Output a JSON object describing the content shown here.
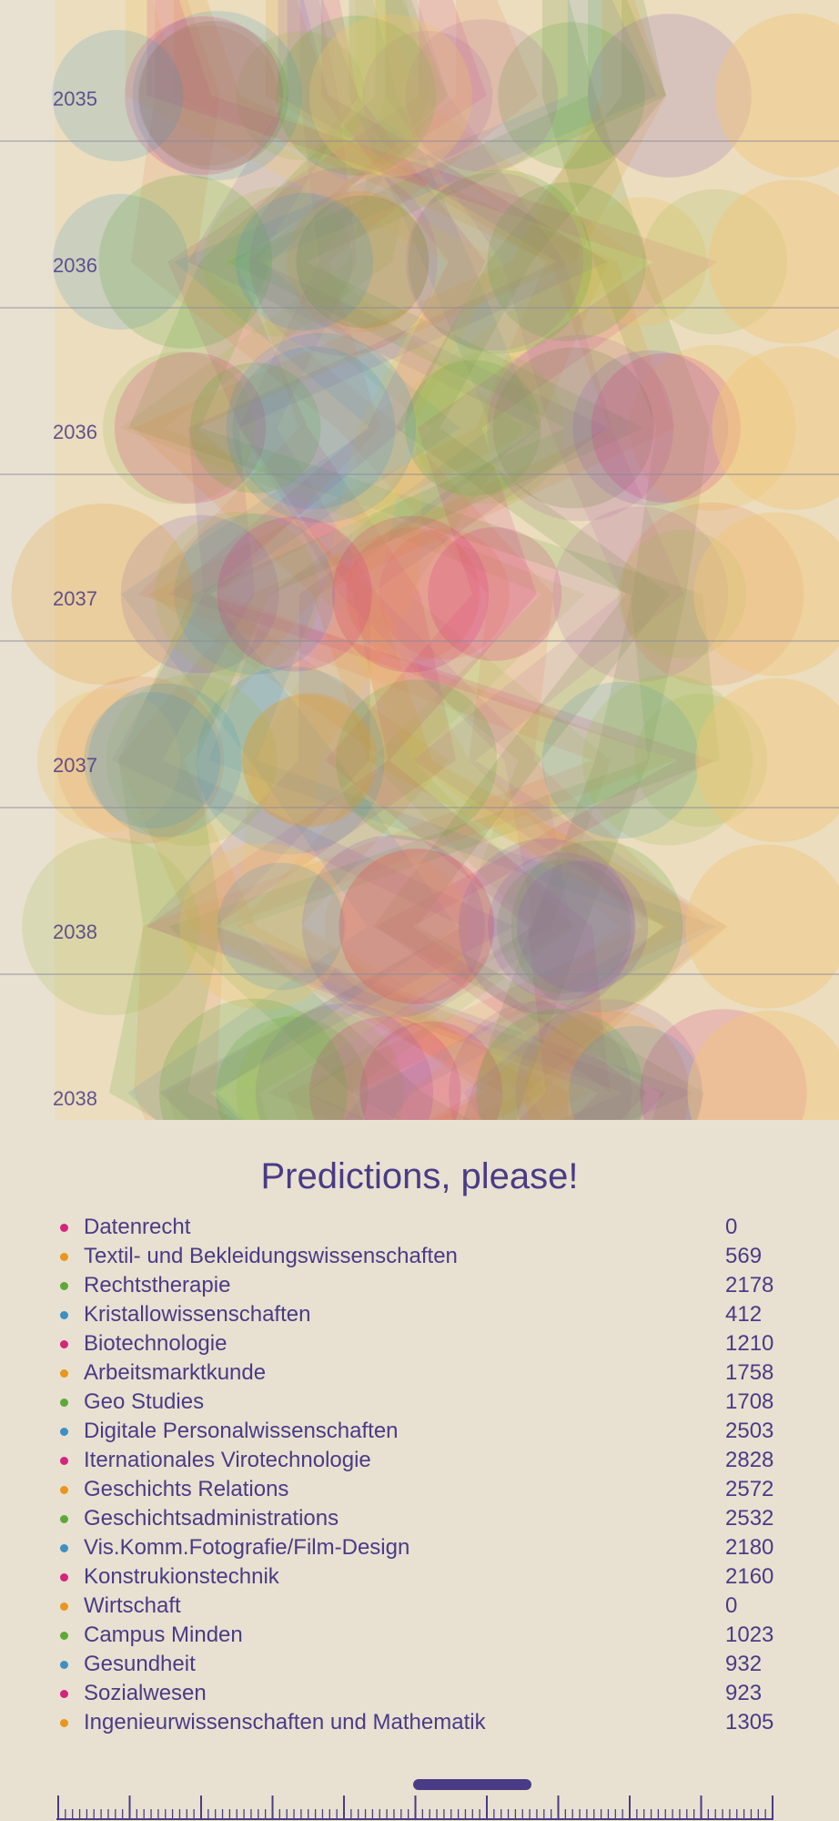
{
  "title": "Predictions, please!",
  "years": [
    "2035",
    "2036",
    "2036",
    "2037",
    "2037",
    "2038",
    "2038"
  ],
  "colors": {
    "magenta": "#d6247e",
    "orange": "#e8961e",
    "green": "#5ea83a",
    "blue": "#3f8fc2",
    "accent": "#4a3b86",
    "background": "#e8e1d1"
  },
  "legend": [
    {
      "label": "Datenrecht",
      "value": "0",
      "color": "#d6247e"
    },
    {
      "label": "Textil- und Bekleidungswissenschaften",
      "value": "569",
      "color": "#e8961e"
    },
    {
      "label": "Rechtstherapie",
      "value": "2178",
      "color": "#5ea83a"
    },
    {
      "label": "Kristallowissenschaften",
      "value": "412",
      "color": "#3f8fc2"
    },
    {
      "label": "Biotechnologie",
      "value": "1210",
      "color": "#d6247e"
    },
    {
      "label": "Arbeitsmarktkunde",
      "value": "1758",
      "color": "#e8961e"
    },
    {
      "label": "Geo Studies",
      "value": "1708",
      "color": "#5ea83a"
    },
    {
      "label": "Digitale Personalwissenschaften",
      "value": "2503",
      "color": "#3f8fc2"
    },
    {
      "label": "Iternationales Virotechnologie",
      "value": "2828",
      "color": "#d6247e"
    },
    {
      "label": "Geschichts Relations",
      "value": "2572",
      "color": "#e8961e"
    },
    {
      "label": "Geschichtsadministrations",
      "value": "2532",
      "color": "#5ea83a"
    },
    {
      "label": "Vis.Komm.Fotografie/Film-Design",
      "value": "2180",
      "color": "#3f8fc2"
    },
    {
      "label": "Konstrukionstechnik",
      "value": "2160",
      "color": "#d6247e"
    },
    {
      "label": "Wirtschaft",
      "value": "0",
      "color": "#e8961e"
    },
    {
      "label": "Campus Minden",
      "value": "1023",
      "color": "#5ea83a"
    },
    {
      "label": "Gesundheit",
      "value": "932",
      "color": "#3f8fc2"
    },
    {
      "label": "Sozialwesen",
      "value": "923",
      "color": "#d6247e"
    },
    {
      "label": "Ingenieurwissenschaften und Mathematik",
      "value": "1305",
      "color": "#e8961e"
    }
  ]
}
